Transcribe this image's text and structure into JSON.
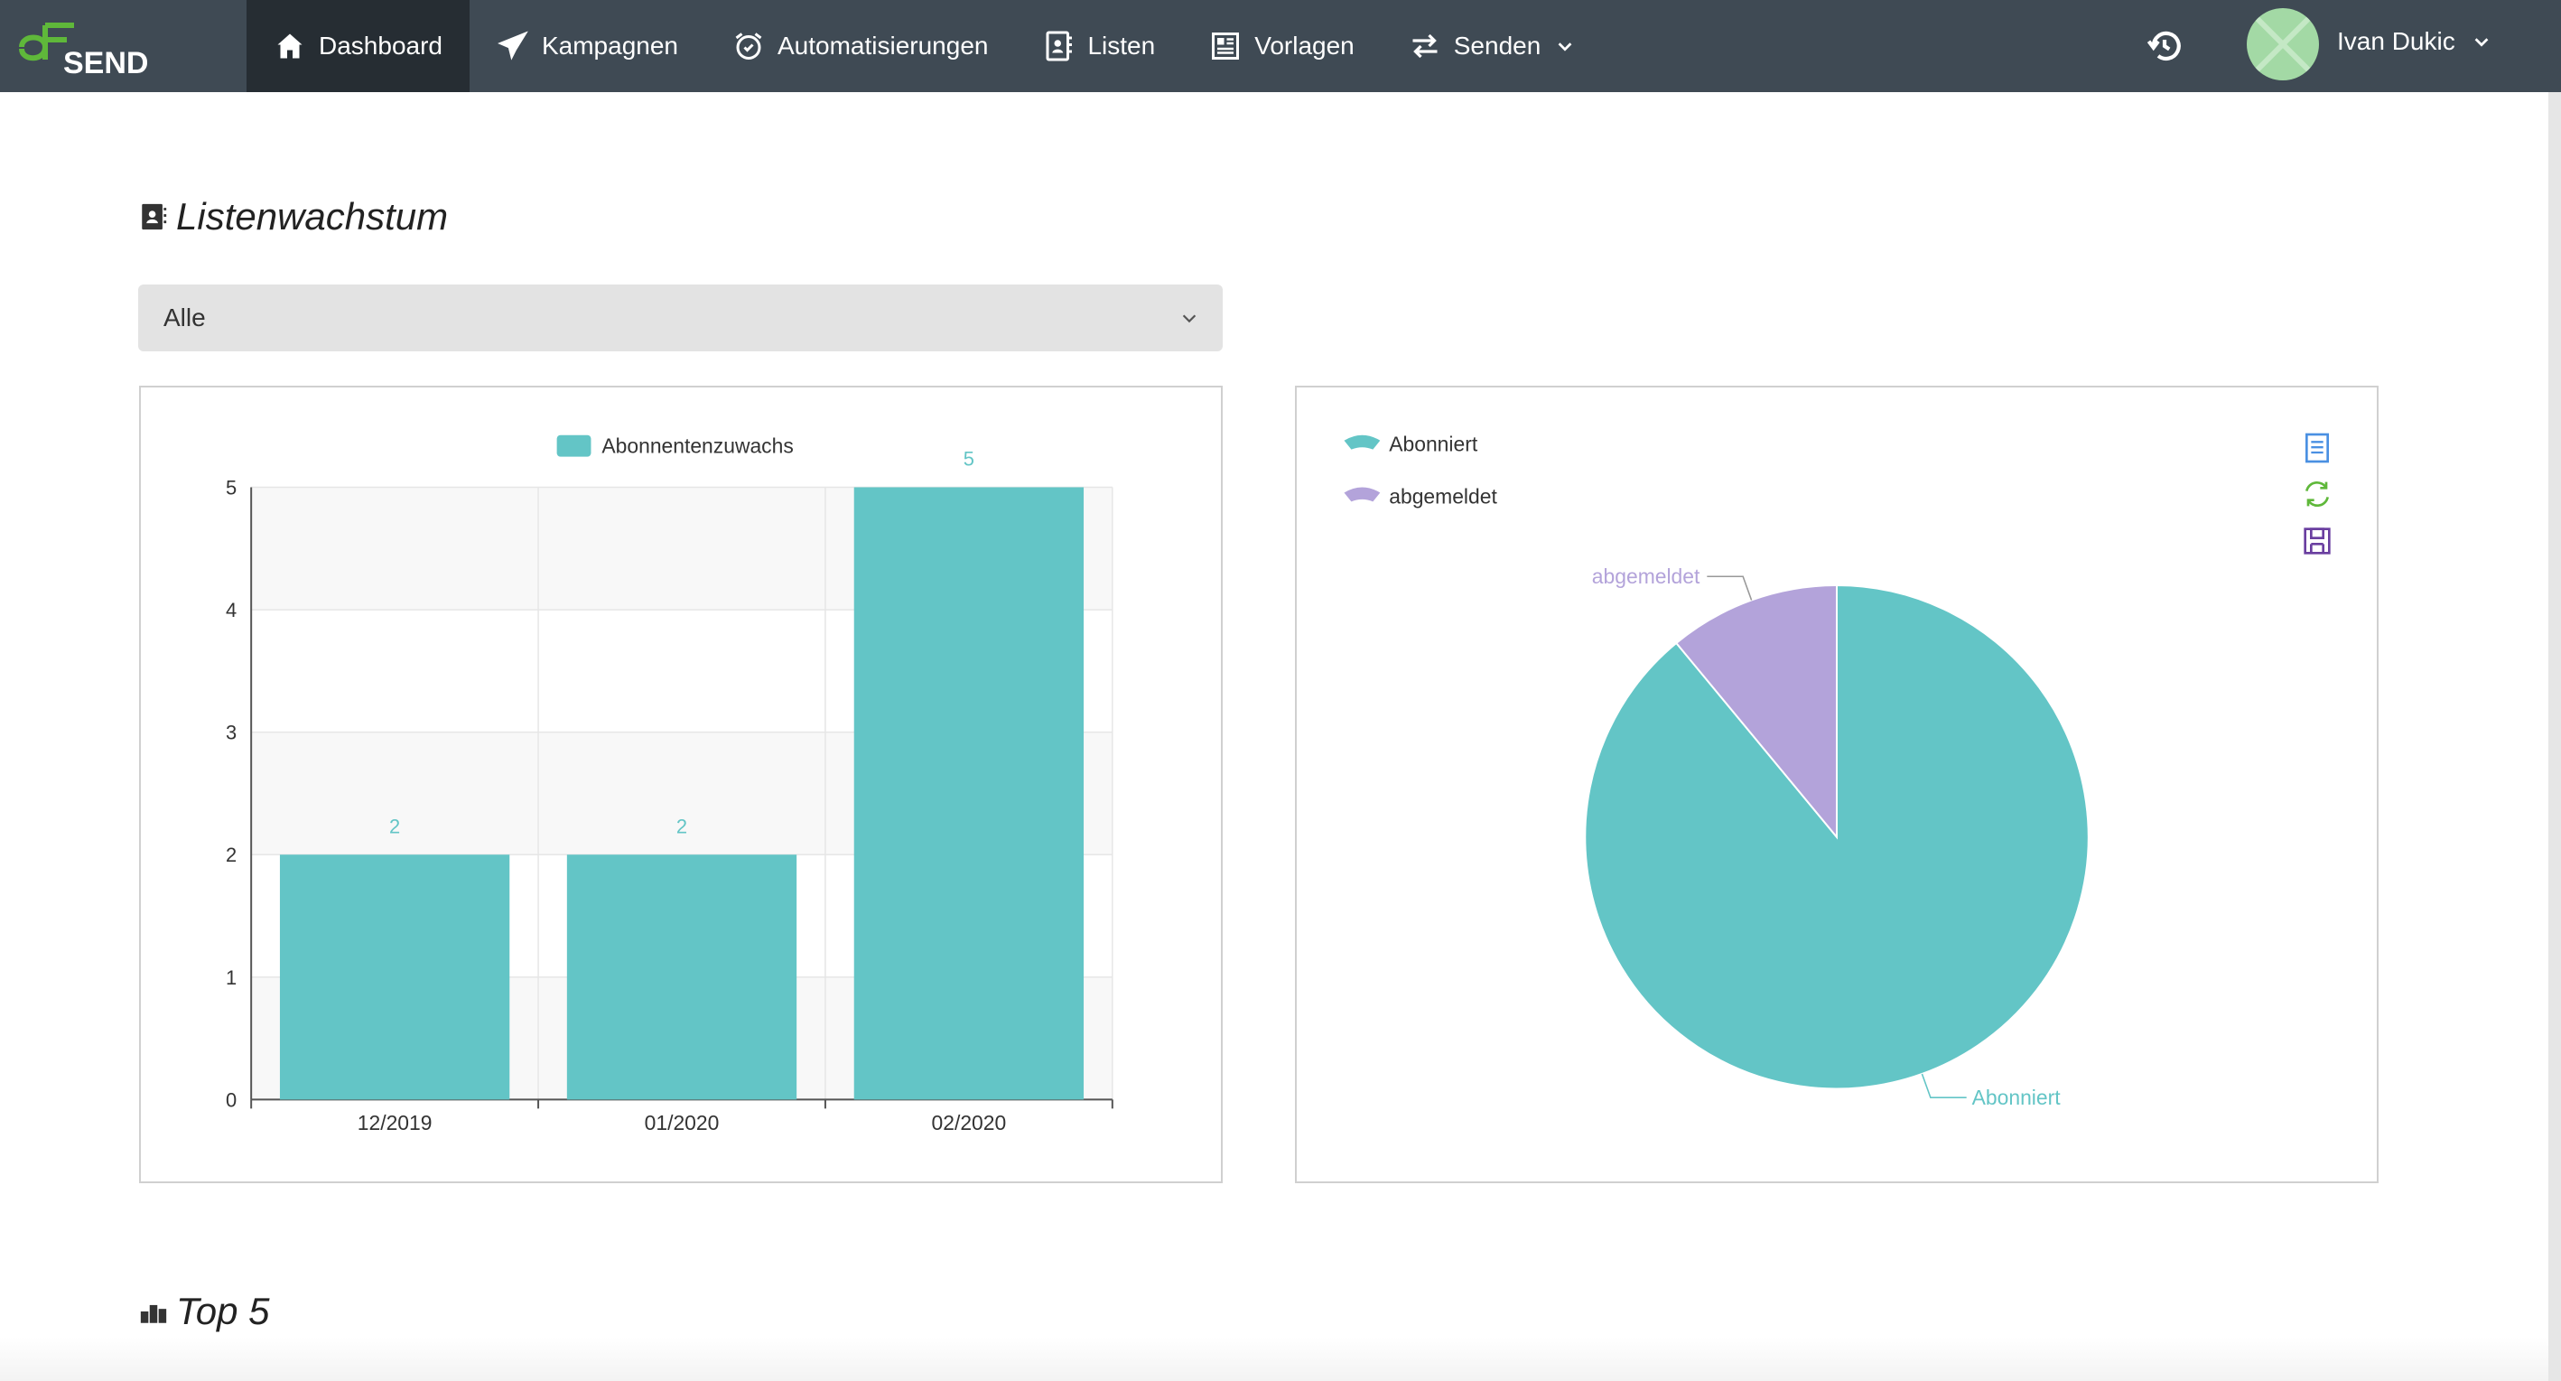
{
  "app": {
    "logo_text": "SEND"
  },
  "nav": {
    "items": [
      {
        "label": "Dashboard",
        "icon": "home-icon",
        "active": true
      },
      {
        "label": "Kampagnen",
        "icon": "paper-plane-icon"
      },
      {
        "label": "Automatisierungen",
        "icon": "alarm-clock-icon"
      },
      {
        "label": "Listen",
        "icon": "contact-book-icon"
      },
      {
        "label": "Vorlagen",
        "icon": "newspaper-icon"
      },
      {
        "label": "Senden",
        "icon": "exchange-arrows-icon",
        "dropdown": true
      }
    ],
    "history_icon": "history-icon",
    "user_name": "Ivan Dukic"
  },
  "listenwachstum": {
    "title": "Listenwachstum",
    "select_value": "Alle"
  },
  "colors": {
    "teal": "#63c5c6",
    "purple": "#b3a3da",
    "nav_bg": "#3f4a54",
    "nav_active": "#262d33"
  },
  "chart_data": [
    {
      "type": "bar",
      "legend": [
        "Abonnentenzuwachs"
      ],
      "categories": [
        "12/2019",
        "01/2020",
        "02/2020"
      ],
      "series": [
        {
          "name": "Abonnentenzuwachs",
          "values": [
            2,
            2,
            5
          ]
        }
      ],
      "ylim": [
        0,
        5
      ],
      "yticks": [
        "0",
        "1",
        "2",
        "3",
        "4",
        "5"
      ],
      "data_labels": [
        "2",
        "2",
        "5"
      ],
      "grid": true,
      "legend_position": "top"
    },
    {
      "type": "pie",
      "legend": [
        "Abonniert",
        "abgemeldet"
      ],
      "slices": [
        {
          "name": "Abonniert",
          "value": 89
        },
        {
          "name": "abgemeldet",
          "value": 11
        }
      ],
      "slice_labels": [
        "Abonniert",
        "abgemeldet"
      ],
      "legend_position": "top-left",
      "toolbox": [
        "data-view-icon",
        "restore-icon",
        "save-image-icon"
      ]
    }
  ],
  "top5": {
    "title": "Top 5"
  }
}
